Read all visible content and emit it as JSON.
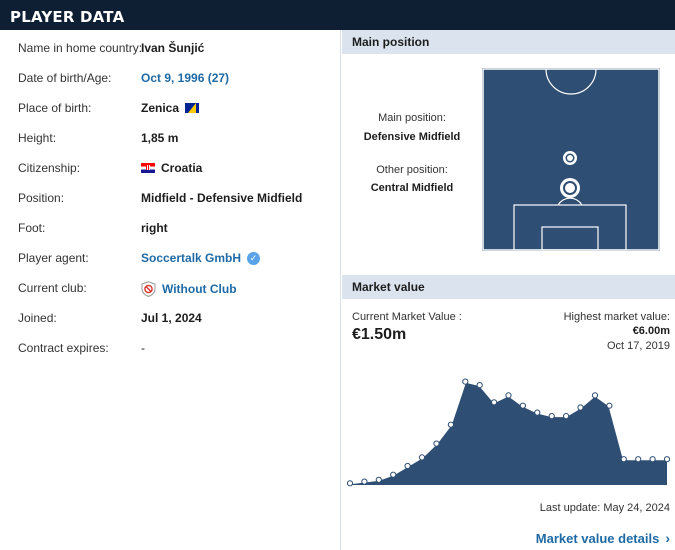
{
  "header": {
    "title": "PLAYER DATA"
  },
  "player_info": [
    {
      "label": "Name in home country:",
      "value": "Ivan Šunjić",
      "style": "bold"
    },
    {
      "label": "Date of birth/Age:",
      "value": "Oct 9, 1996 (27)",
      "style": "link"
    },
    {
      "label": "Place of birth:",
      "value": "Zenica",
      "style": "bold",
      "icon": "bosnia-flag-icon"
    },
    {
      "label": "Height:",
      "value": "1,85 m",
      "style": "bold"
    },
    {
      "label": "Citizenship:",
      "value": "Croatia",
      "style": "bold",
      "icon": "croatia-flag-icon"
    },
    {
      "label": "Position:",
      "value": "Midfield - Defensive Midfield",
      "style": "bold"
    },
    {
      "label": "Foot:",
      "value": "right",
      "style": "bold"
    },
    {
      "label": "Player agent:",
      "value": "Soccertalk GmbH",
      "style": "link",
      "icon": "verified-icon"
    },
    {
      "label": "Current club:",
      "value": "Without Club",
      "style": "link",
      "icon": "no-club-icon"
    },
    {
      "label": "Joined:",
      "value": "Jul 1, 2024",
      "style": "bold"
    },
    {
      "label": "Contract expires:",
      "value": "-",
      "style": "plain"
    }
  ],
  "main_position": {
    "heading": "Main position",
    "main_label": "Main position:",
    "main_value": "Defensive Midfield",
    "other_label": "Other position:",
    "other_value": "Central Midfield"
  },
  "market_value": {
    "heading": "Market value",
    "current_label": "Current Market Value :",
    "current_value": "€1.50m",
    "highest_label": "Highest market value:",
    "highest_value": "€6.00m",
    "highest_date": "Oct 17, 2019",
    "last_update": "Last update: May 24, 2024",
    "details_link": "Market value details"
  },
  "chart_data": {
    "type": "area",
    "values_m": [
      0.1,
      0.2,
      0.3,
      0.6,
      1.1,
      1.6,
      2.4,
      3.5,
      6.0,
      5.8,
      4.8,
      5.2,
      4.6,
      4.2,
      4.0,
      4.0,
      4.5,
      5.2,
      4.6,
      1.5,
      1.5,
      1.5,
      1.5
    ],
    "ylim": [
      0,
      6.5
    ],
    "colors": {
      "fill": "#2f4e73",
      "line": "#ffffff",
      "point": "#ffffff"
    }
  },
  "colors": {
    "header_bg": "#0e1e33",
    "section_bg": "#dbe4ee",
    "link": "#1f6aa5",
    "pitch": "#2f4e73"
  }
}
